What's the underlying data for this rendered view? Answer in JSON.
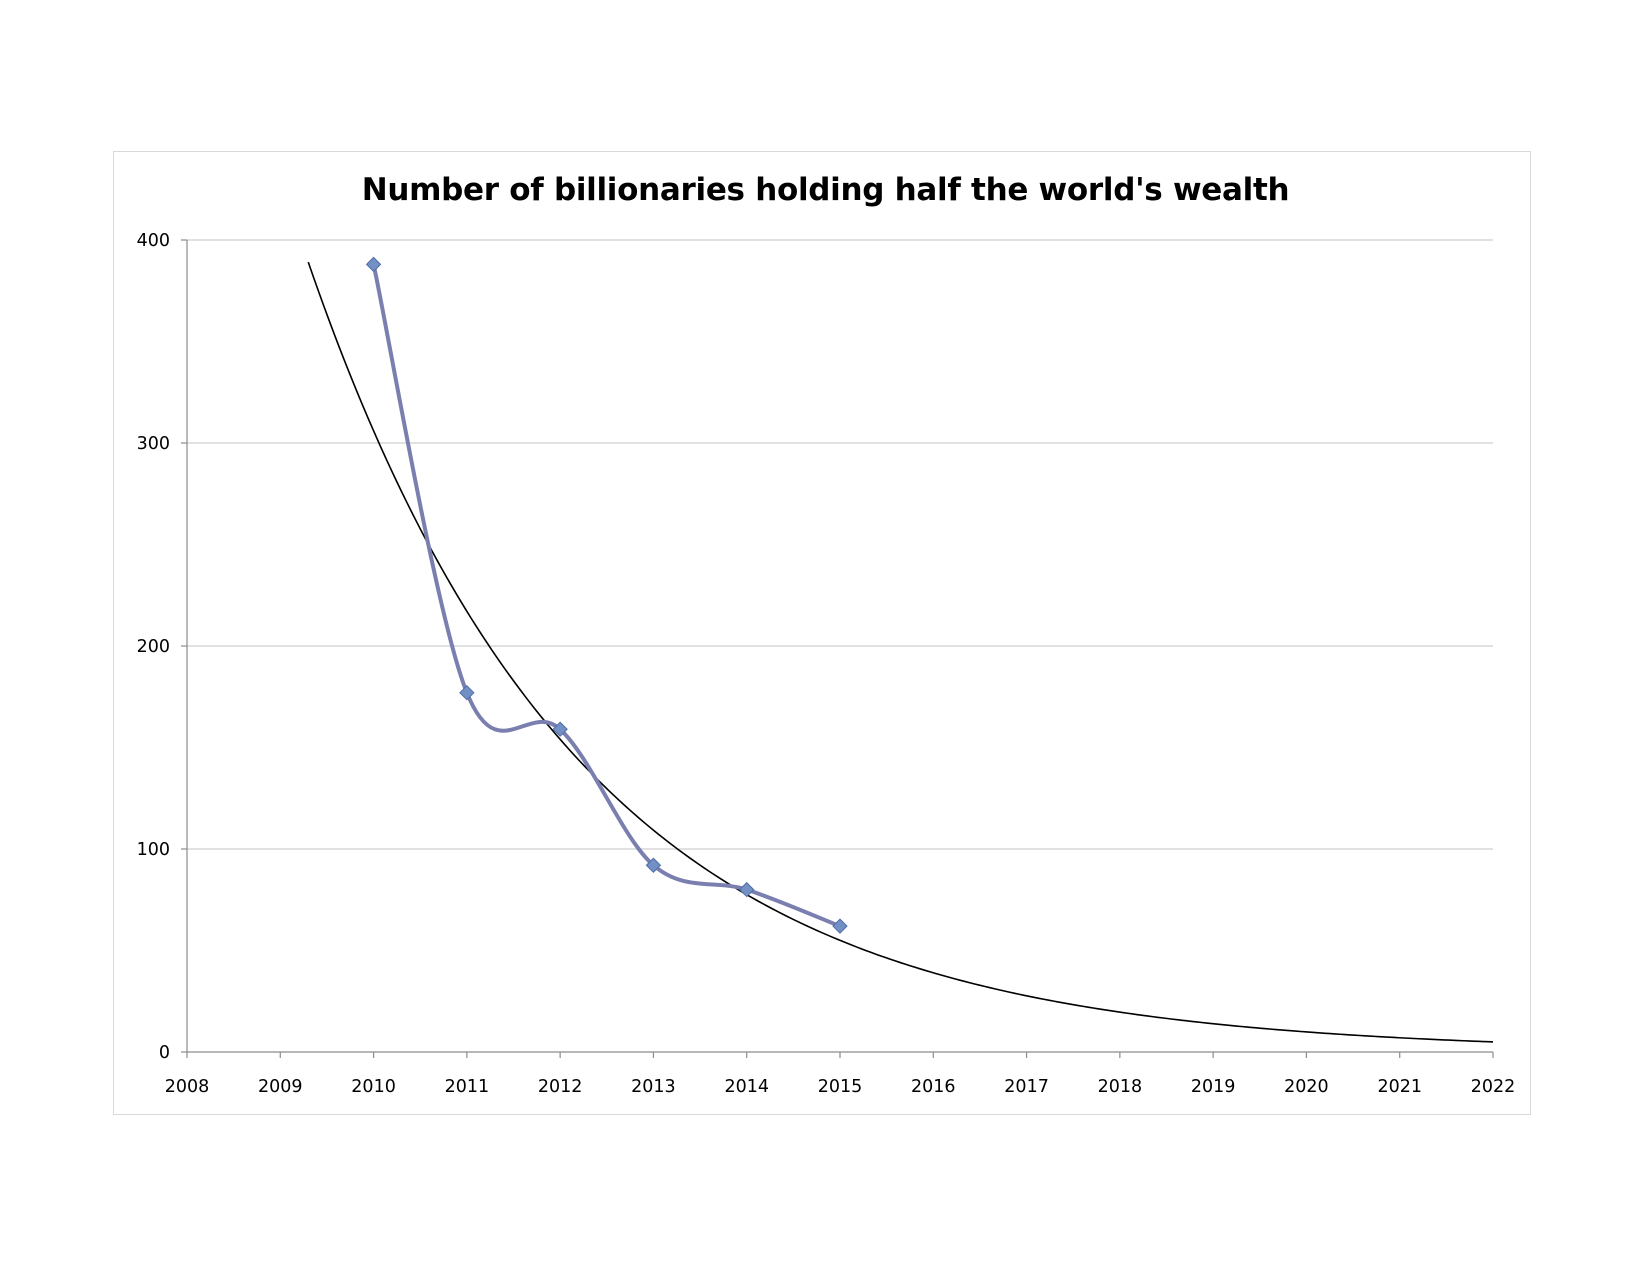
{
  "chart_data": {
    "type": "line",
    "title": "Number of billionaries holding half the world's wealth",
    "xlabel": "",
    "ylabel": "",
    "xlim": [
      2008,
      2022
    ],
    "ylim": [
      0,
      400
    ],
    "x_ticks": [
      "2008",
      "2009",
      "2010",
      "2011",
      "2012",
      "2013",
      "2014",
      "2015",
      "2016",
      "2017",
      "2018",
      "2019",
      "2020",
      "2021",
      "2022"
    ],
    "y_ticks": [
      "0",
      "100",
      "200",
      "300",
      "400"
    ],
    "grid": "horizontal",
    "legend": "none",
    "series": [
      {
        "x": [
          2010,
          2011,
          2012,
          2013,
          2014,
          2015
        ],
        "y": [
          388,
          177,
          159,
          92,
          80,
          62
        ],
        "color": "#7b7fb0",
        "marker": "diamond",
        "marker_color": "#7290c4",
        "smooth": true
      }
    ],
    "trendline": {
      "type": "exponential",
      "color": "#000000",
      "x_start": 2009.3,
      "x_end": 2022,
      "y_at_2010": 306,
      "y_at_2015": 55
    }
  }
}
